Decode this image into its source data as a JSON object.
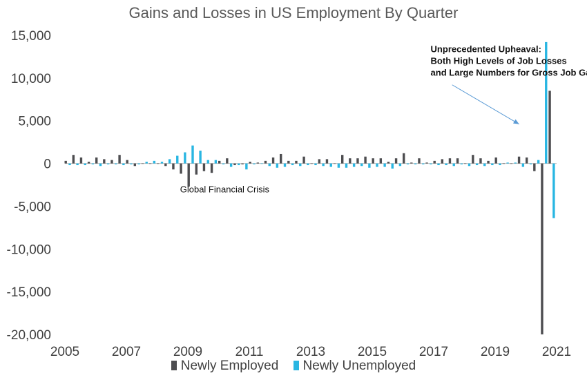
{
  "chart_data": {
    "type": "bar",
    "title": "Gains and Losses in US Employment By Quarter",
    "xlabel": "",
    "ylabel": "",
    "ylim": [
      -20000,
      15000
    ],
    "yticks": [
      15000,
      10000,
      5000,
      0,
      -5000,
      -10000,
      -15000,
      -20000
    ],
    "ytick_labels": [
      "15,000",
      "10,000",
      "5,000",
      "0",
      "-5,000",
      "-10,000",
      "-15,000",
      "-20,000"
    ],
    "xticks": [
      2005,
      2007,
      2009,
      2011,
      2013,
      2015,
      2017,
      2019,
      2021
    ],
    "xtick_labels": [
      "2005",
      "2007",
      "2009",
      "2011",
      "2013",
      "2015",
      "2017",
      "2019",
      "2021"
    ],
    "x_start": 2005.0,
    "x_step": 0.25,
    "grid": false,
    "legend": "bottom",
    "annotations": [
      {
        "text": "Global Financial Crisis",
        "bold": false,
        "x": 2010.2,
        "y": -3400
      },
      {
        "lines": [
          "Unprecedented Upheaval:",
          "Both High Levels of Job Losses",
          "and Large Numbers for Gross Job Gains"
        ],
        "bold": true,
        "x": 2016.9,
        "y": 13000,
        "arrow_from": [
          2017.6,
          9200
        ],
        "arrow_to": [
          2019.78,
          4600
        ]
      }
    ],
    "series": [
      {
        "name": "Newly Employed",
        "color": "#4d4d50",
        "values": [
          300,
          1000,
          700,
          200,
          700,
          500,
          400,
          1000,
          400,
          -300,
          0,
          0,
          0,
          -300,
          -700,
          -1200,
          -2700,
          -1300,
          -900,
          -1100,
          300,
          600,
          -200,
          -100,
          200,
          100,
          300,
          700,
          1100,
          300,
          300,
          800,
          0,
          500,
          500,
          0,
          1000,
          600,
          600,
          800,
          600,
          600,
          200,
          600,
          1200,
          100,
          600,
          100,
          300,
          500,
          600,
          600,
          0,
          1000,
          600,
          300,
          700,
          0,
          0,
          800,
          700,
          -900,
          -20000,
          8500
        ]
      },
      {
        "name": "Newly Unemployed",
        "color": "#29b6e2",
        "values": [
          -200,
          -200,
          -200,
          -100,
          -300,
          -100,
          -100,
          -200,
          -100,
          -100,
          200,
          300,
          200,
          500,
          900,
          1300,
          2100,
          1500,
          400,
          400,
          -100,
          -400,
          -200,
          -700,
          -100,
          0,
          -300,
          -500,
          -400,
          -200,
          -300,
          -200,
          -200,
          -300,
          -400,
          -500,
          -500,
          -400,
          -300,
          -500,
          -400,
          -400,
          -600,
          -300,
          -100,
          -100,
          -100,
          -100,
          -200,
          -200,
          -300,
          -100,
          -300,
          -200,
          -300,
          -200,
          -200,
          100,
          100,
          -400,
          -100,
          400,
          14200,
          -6400
        ]
      }
    ]
  }
}
